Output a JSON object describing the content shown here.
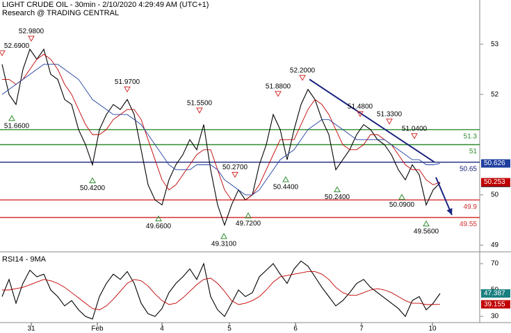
{
  "chart_data": [
    {
      "type": "line",
      "title": "LIGHT CRUDE OIL - 30min - 2/10/2020 4:29:49 AM (UTC+1)",
      "subtitle": "Research @ TRADING CENTRAL",
      "x": [
        0,
        1,
        2,
        3,
        4,
        5,
        6,
        7,
        8,
        9,
        10,
        11,
        12,
        13,
        14,
        15,
        16,
        17,
        18,
        19,
        20,
        21,
        22,
        23,
        24,
        25,
        26,
        27,
        28,
        29,
        30,
        31,
        32,
        33,
        34,
        35,
        36,
        37,
        38,
        39,
        40,
        41,
        42,
        43,
        44,
        45,
        46,
        47,
        48,
        49,
        50,
        51,
        52,
        53,
        54,
        55,
        56,
        57,
        58,
        59,
        60,
        61,
        62,
        63
      ],
      "xlim": [
        -0.3,
        68.7
      ],
      "ylim": [
        48.88,
        53.88
      ],
      "yticks": [
        49,
        50,
        52,
        53
      ],
      "series": [
        {
          "color": "#000000",
          "values": [
            52.6,
            52.0,
            51.8,
            52.5,
            52.9,
            52.7,
            52.9,
            52.4,
            52.3,
            51.9,
            51.8,
            51.3,
            51.0,
            50.6,
            51.3,
            51.6,
            51.8,
            51.7,
            51.9,
            51.6,
            50.9,
            50.2,
            49.9,
            49.8,
            50.3,
            50.6,
            50.8,
            51.1,
            50.9,
            51.4,
            50.5,
            49.8,
            49.4,
            49.8,
            50.1,
            49.9,
            50.0,
            50.6,
            51.0,
            51.6,
            51.3,
            50.7,
            51.3,
            51.8,
            52.1,
            51.9,
            51.5,
            51.2,
            50.5,
            50.7,
            50.9,
            51.2,
            51.4,
            51.3,
            51.1,
            51.0,
            50.8,
            50.5,
            50.3,
            50.6,
            50.4,
            49.8,
            50.1,
            50.24
          ]
        },
        {
          "color": "#c00000",
          "values": [
            52.3,
            52.3,
            52.2,
            52.3,
            52.5,
            52.7,
            52.8,
            52.7,
            52.5,
            52.2,
            52.0,
            51.7,
            51.4,
            51.2,
            51.2,
            51.3,
            51.5,
            51.6,
            51.7,
            51.7,
            51.5,
            51.1,
            50.7,
            50.3,
            50.1,
            50.2,
            50.4,
            50.6,
            50.8,
            50.9,
            50.9,
            50.5,
            50.1,
            49.9,
            49.9,
            49.9,
            50.0,
            50.2,
            50.5,
            50.8,
            51.1,
            51.1,
            51.1,
            51.4,
            51.7,
            51.9,
            51.8,
            51.6,
            51.3,
            51.0,
            50.9,
            50.9,
            51.0,
            51.2,
            51.2,
            51.1,
            51.0,
            50.8,
            50.6,
            50.5,
            50.5,
            50.3,
            50.2,
            50.253
          ]
        },
        {
          "color": "#1f3f9f",
          "values": [
            52.0,
            52.1,
            52.2,
            52.3,
            52.4,
            52.5,
            52.6,
            52.6,
            52.6,
            52.5,
            52.4,
            52.3,
            52.1,
            51.9,
            51.8,
            51.7,
            51.6,
            51.6,
            51.6,
            51.5,
            51.4,
            51.2,
            51.0,
            50.8,
            50.6,
            50.5,
            50.5,
            50.5,
            50.6,
            50.6,
            50.6,
            50.5,
            50.3,
            50.2,
            50.1,
            50.0,
            50.0,
            50.1,
            50.3,
            50.5,
            50.7,
            50.8,
            50.9,
            51.1,
            51.3,
            51.4,
            51.5,
            51.5,
            51.4,
            51.3,
            51.2,
            51.1,
            51.1,
            51.1,
            51.1,
            51.1,
            51.0,
            50.9,
            50.8,
            50.7,
            50.7,
            50.6,
            50.6,
            50.626
          ]
        }
      ],
      "levels": [
        {
          "value": 51.3,
          "color": "#2e8b2e"
        },
        {
          "value": 51,
          "color": "#2e8b2e"
        },
        {
          "value": 50.65,
          "color": "#1a237e"
        },
        {
          "value": 49.9,
          "color": "#d32f2f"
        },
        {
          "value": 49.55,
          "color": "#d32f2f"
        }
      ],
      "annotations": [
        {
          "x": 0,
          "value": {
            "value": 52.69,
            "label": "52.6900"
          },
          "kind": "high"
        },
        {
          "x": 4.2,
          "value": {
            "value": 52.98,
            "label": "52.9800"
          },
          "kind": "high"
        },
        {
          "x": 1.4,
          "value": {
            "value": 51.66,
            "label": "51.6600"
          },
          "kind": "low"
        },
        {
          "x": 13,
          "value": {
            "value": 50.42,
            "label": "50.4200"
          },
          "kind": "low"
        },
        {
          "x": 18,
          "value": {
            "value": 51.97,
            "label": "51.9700"
          },
          "kind": "high"
        },
        {
          "x": 22.5,
          "value": {
            "value": 49.66,
            "label": "49.6600"
          },
          "kind": "low"
        },
        {
          "x": 28.4,
          "value": {
            "value": 51.55,
            "label": "51.5500"
          },
          "kind": "high"
        },
        {
          "x": 33.5,
          "value": {
            "value": 50.27,
            "label": "50.2700"
          },
          "kind": "high"
        },
        {
          "x": 31.9,
          "value": {
            "value": 49.31,
            "label": "49.3100"
          },
          "kind": "low"
        },
        {
          "x": 35.4,
          "value": {
            "value": 49.72,
            "label": "49.7200"
          },
          "kind": "low"
        },
        {
          "x": 39.7,
          "value": {
            "value": 51.88,
            "label": "51.8800"
          },
          "kind": "high"
        },
        {
          "x": 40.8,
          "value": {
            "value": 50.44,
            "label": "50.4400"
          },
          "kind": "low"
        },
        {
          "x": 43.2,
          "value": {
            "value": 52.2,
            "label": "52.2000"
          },
          "kind": "high"
        },
        {
          "x": 48.2,
          "value": {
            "value": 50.24,
            "label": "50.2400"
          },
          "kind": "low"
        },
        {
          "x": 51.5,
          "value": {
            "value": 51.48,
            "label": "51.4800"
          },
          "kind": "high"
        },
        {
          "x": 55.7,
          "value": {
            "value": 51.33,
            "label": "51.3300"
          },
          "kind": "high"
        },
        {
          "x": 59.3,
          "value": {
            "value": 51.04,
            "label": "51.0400"
          },
          "kind": "high"
        },
        {
          "x": 57.5,
          "value": {
            "value": 50.09,
            "label": "50.0900"
          },
          "kind": "low"
        },
        {
          "x": 61,
          "value": {
            "value": 49.56,
            "label": "49.5600"
          },
          "kind": "low"
        }
      ],
      "trendline": {
        "x": [
          44.2,
          62.2
        ],
        "values": [
          52.3,
          50.65
        ],
        "color": "#1a237e"
      },
      "arrow": {
        "x": [
          62.4,
          64.7
        ],
        "values": [
          50.35,
          49.6
        ],
        "color": "#1a237e"
      }
    },
    {
      "type": "line",
      "title": "RSI14 - 9MA",
      "x": [
        0,
        1,
        2,
        3,
        4,
        5,
        6,
        7,
        8,
        9,
        10,
        11,
        12,
        13,
        14,
        15,
        16,
        17,
        18,
        19,
        20,
        21,
        22,
        23,
        24,
        25,
        26,
        27,
        28,
        29,
        30,
        31,
        32,
        33,
        34,
        35,
        36,
        37,
        38,
        39,
        40,
        41,
        42,
        43,
        44,
        45,
        46,
        47,
        48,
        49,
        50,
        51,
        52,
        53,
        54,
        55,
        56,
        57,
        58,
        59,
        60,
        61,
        62,
        63
      ],
      "xlim": [
        -0.3,
        68.7
      ],
      "ylim": [
        25.3,
        77.9
      ],
      "yticks": [
        30,
        50,
        70
      ],
      "xticks": [
        {
          "value": 4.2,
          "label": "31"
        },
        {
          "value": 13.7,
          "label": "Feb"
        },
        {
          "value": 23,
          "label": "4"
        },
        {
          "value": 32.7,
          "label": "5"
        },
        {
          "value": 42.2,
          "label": "6"
        },
        {
          "value": 51.7,
          "label": "7"
        },
        {
          "value": 61.9,
          "label": "10"
        }
      ],
      "series": [
        {
          "color": "#000000",
          "box": "#1a7f7f",
          "values": [
            45,
            58,
            40,
            55,
            65,
            60,
            62,
            50,
            45,
            38,
            42,
            35,
            30,
            28,
            45,
            55,
            62,
            58,
            64,
            55,
            40,
            32,
            30,
            36,
            48,
            55,
            60,
            66,
            58,
            70,
            45,
            35,
            30,
            40,
            50,
            45,
            48,
            60,
            65,
            70,
            62,
            55,
            66,
            72,
            68,
            60,
            52,
            45,
            38,
            42,
            48,
            55,
            58,
            52,
            48,
            44,
            40,
            36,
            30,
            42,
            45,
            35,
            40,
            47.387
          ]
        },
        {
          "color": "#c00000",
          "box": "#c00000",
          "values": [
            50,
            50,
            51,
            52,
            54,
            56,
            58,
            57,
            55,
            52,
            48,
            44,
            40,
            36,
            35,
            38,
            43,
            49,
            55,
            58,
            57,
            53,
            47,
            42,
            39,
            40,
            44,
            49,
            54,
            58,
            59,
            55,
            49,
            42,
            39,
            40,
            42,
            45,
            50,
            56,
            60,
            61,
            62,
            63,
            64,
            64,
            62,
            58,
            52,
            48,
            46,
            46,
            48,
            50,
            51,
            50,
            48,
            45,
            42,
            40,
            40,
            39,
            39,
            39.155
          ]
        }
      ]
    }
  ]
}
